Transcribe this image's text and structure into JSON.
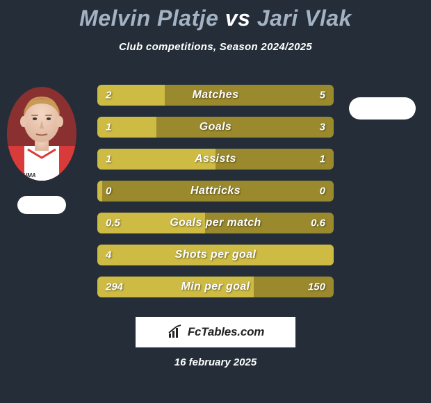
{
  "title": {
    "player1": "Melvin Platje",
    "vs": "vs",
    "player2": "Jari Vlak",
    "player1_color": "#a3b3c4",
    "vs_color": "#ffffff",
    "player2_color": "#a3b3c4",
    "fontsize": 32
  },
  "subtitle": {
    "text": "Club competitions, Season 2024/2025",
    "color": "#ffffff",
    "fontsize": 15
  },
  "background_color": "#252e38",
  "avatar_bg": "#7a2a2a",
  "bar_style": {
    "bg_color": "#9a8a2d",
    "fill_color": "#cdbb44",
    "text_color": "#ffffff",
    "height": 30,
    "gap": 16,
    "border_radius": 6,
    "fontsize": 16
  },
  "stats": [
    {
      "label": "Matches",
      "p1": "2",
      "p2": "5",
      "fill_pct": 28.6
    },
    {
      "label": "Goals",
      "p1": "1",
      "p2": "3",
      "fill_pct": 25.0
    },
    {
      "label": "Assists",
      "p1": "1",
      "p2": "1",
      "fill_pct": 50.0
    },
    {
      "label": "Hattricks",
      "p1": "0",
      "p2": "0",
      "fill_pct": 2.0
    },
    {
      "label": "Goals per match",
      "p1": "0.5",
      "p2": "0.6",
      "fill_pct": 45.5
    },
    {
      "label": "Shots per goal",
      "p1": "4",
      "p2": "",
      "fill_pct": 100.0
    },
    {
      "label": "Min per goal",
      "p1": "294",
      "p2": "150",
      "fill_pct": 66.2
    }
  ],
  "branding": {
    "text": "FcTables.com",
    "bg": "#ffffff",
    "text_color": "#222222",
    "fontsize": 17
  },
  "date": {
    "text": "16 february 2025",
    "color": "#ffffff",
    "fontsize": 15
  }
}
